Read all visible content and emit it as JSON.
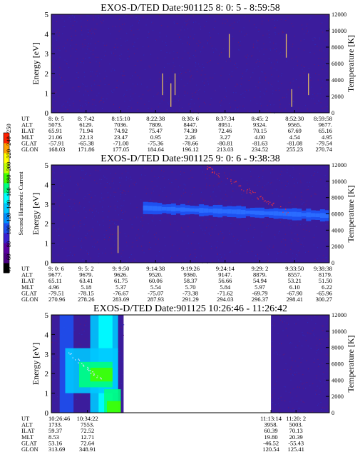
{
  "chart_data": [
    {
      "type": "heatmap",
      "title": "EXOS-D/TED   Date:901125   8: 0: 5 - 8:59:58",
      "ylabel": "Energy [eV]",
      "y2label": "Temperature [K]",
      "ylim": [
        0,
        5
      ],
      "y2lim": [
        0,
        12000
      ],
      "yticks": [
        "0",
        "1",
        "2",
        "3",
        "4",
        "5"
      ],
      "y2ticks": [
        "0",
        "2000",
        "4000",
        "6000",
        "8000",
        "10000",
        "12000"
      ],
      "xcols": [
        {
          "UT": "8: 0: 5",
          "ALT": "5073.",
          "ILAT": "65.91",
          "MLT": "21.06",
          "GLAT": "-57.91",
          "GLON": "168.03"
        },
        {
          "UT": "8: 7:42",
          "ALT": "6129.",
          "ILAT": "71.94",
          "MLT": "22.13",
          "GLAT": "-65.38",
          "GLON": "171.86"
        },
        {
          "UT": "8:15:10",
          "ALT": "7036.",
          "ILAT": "74.92",
          "MLT": "23.47",
          "GLAT": "-71.00",
          "GLON": "177.05"
        },
        {
          "UT": "8:22:38",
          "ALT": "7809.",
          "ILAT": "75.47",
          "MLT": "0.95",
          "GLAT": "-75.36",
          "GLON": "184.64"
        },
        {
          "UT": "8:30: 6",
          "ALT": "8447.",
          "ILAT": "74.39",
          "MLT": "2.26",
          "GLAT": "-78.66",
          "GLON": "196.12"
        },
        {
          "UT": "8:37:34",
          "ALT": "8951.",
          "ILAT": "72.46",
          "MLT": "3.27",
          "GLAT": "-80.81",
          "GLON": "213.03"
        },
        {
          "UT": "8:45: 2",
          "ALT": "9324.",
          "ILAT": "70.15",
          "MLT": "4.00",
          "GLAT": "-81.63",
          "GLON": "234.52"
        },
        {
          "UT": "8:52:30",
          "ALT": "9565.",
          "ILAT": "67.69",
          "MLT": "4.54",
          "GLAT": "-81.08",
          "GLON": "255.23"
        },
        {
          "UT": "8:59:58",
          "ALT": "9677.",
          "ILAT": "65.16",
          "MLT": "4.95",
          "GLAT": "-79.54",
          "GLON": "270.74"
        }
      ],
      "data_span": [
        0,
        1
      ],
      "spikes": [
        {
          "t": 0.4,
          "e0": 0.9,
          "e1": 2.0
        },
        {
          "t": 0.43,
          "e0": 0.3,
          "e1": 1.5
        },
        {
          "t": 0.445,
          "e0": 0.9,
          "e1": 2.0
        },
        {
          "t": 0.64,
          "e0": 2.8,
          "e1": 4.0
        },
        {
          "t": 0.845,
          "e0": 2.8,
          "e1": 4.0
        },
        {
          "t": 0.865,
          "e0": 0.3,
          "e1": 1.2
        },
        {
          "t": 0.925,
          "e0": 0.9,
          "e1": 2.0
        }
      ]
    },
    {
      "type": "heatmap",
      "title": "EXOS-D/TED   Date:901125   9: 0: 6 - 9:38:38",
      "ylabel": "Energy [eV]",
      "y2label": "Temperature [K]",
      "ylim": [
        0,
        5
      ],
      "y2lim": [
        0,
        12000
      ],
      "yticks": [
        "0",
        "1",
        "2",
        "3",
        "4",
        "5"
      ],
      "y2ticks": [
        "0",
        "2000",
        "4000",
        "6000",
        "8000",
        "10000",
        "12000"
      ],
      "xcols": [
        {
          "UT": "9: 0: 6",
          "ALT": "9677.",
          "ILAT": "65.11",
          "MLT": "4.96",
          "GLAT": "-79.51",
          "GLON": "270.96"
        },
        {
          "UT": "9: 5: 2",
          "ALT": "9679.",
          "ILAT": "63.41",
          "MLT": "5.18",
          "GLAT": "-78.15",
          "GLON": "278.26"
        },
        {
          "UT": "9: 9:50",
          "ALT": "9626.",
          "ILAT": "61.75",
          "MLT": "5.37",
          "GLAT": "-76.67",
          "GLON": "283.69"
        },
        {
          "UT": "9:14:38",
          "ALT": "9520.",
          "ILAT": "60.06",
          "MLT": "5.54",
          "GLAT": "-75.07",
          "GLON": "287.93"
        },
        {
          "UT": "9:19:26",
          "ALT": "9360.",
          "ILAT": "58.37",
          "MLT": "5.70",
          "GLAT": "-73.38",
          "GLON": "291.29"
        },
        {
          "UT": "9:24:14",
          "ALT": "9147.",
          "ILAT": "56.66",
          "MLT": "5.84",
          "GLAT": "-71.62",
          "GLON": "294.03"
        },
        {
          "UT": "9:29: 2",
          "ALT": "8879.",
          "ILAT": "54.94",
          "MLT": "5.97",
          "GLAT": "-69.79",
          "GLON": "296.37"
        },
        {
          "UT": "9:33:50",
          "ALT": "8557.",
          "ILAT": "53.21",
          "MLT": "6.10",
          "GLAT": "-67.90",
          "GLON": "298.41"
        },
        {
          "UT": "9:38:38",
          "ALT": "8179.",
          "ILAT": "51.50",
          "MLT": "6.22",
          "GLAT": "-65.96",
          "GLON": "300.27"
        }
      ],
      "data_span": [
        0,
        1
      ],
      "band": {
        "t_start": 0.33,
        "e_center_start": 2.8,
        "e_center_end": 2.4,
        "halfwidth": 0.25
      },
      "spikes": [
        {
          "t": 0.24,
          "e0": 0.5,
          "e1": 1.9
        }
      ]
    },
    {
      "type": "heatmap",
      "title": "EXOS-D/TED   Date:901125   10:26:46 - 11:26:42",
      "ylabel": "Energy [eV]",
      "y2label": "Temperature [K]",
      "ylim": [
        0,
        5
      ],
      "y2lim": [
        0,
        12000
      ],
      "yticks": [
        "0",
        "1",
        "2",
        "3",
        "4",
        "5"
      ],
      "y2ticks": [
        "0",
        "2000",
        "4000",
        "6000",
        "8000",
        "10000",
        "12000"
      ],
      "xcols": [
        {
          "UT": "10:26:46",
          "ALT": "1733.",
          "ILAT": "59.37",
          "MLT": "8.53",
          "GLAT": "53.16",
          "GLON": "313.69"
        },
        {
          "UT": "10:34:22",
          "ALT": "7553.",
          "ILAT": "72.52",
          "MLT": "12.71",
          "GLAT": "72.64",
          "GLON": "348.91"
        },
        {
          "UT": "11:13:14",
          "ALT": "3958.",
          "ILAT": "60.39",
          "MLT": "19.80",
          "GLAT": "-46.52",
          "GLON": "120.54"
        },
        {
          "UT": "11:20: 2",
          "ALT": "5003.",
          "ILAT": "70.13",
          "MLT": "20.39",
          "GLAT": "-55.43",
          "GLON": "125.41"
        }
      ],
      "data_span": [
        [
          0,
          0.26
        ],
        [
          0.79,
          1
        ]
      ]
    }
  ],
  "colorbar": {
    "label": "Second Harmonic Current",
    "ticks": [
      "40",
      "60",
      "80",
      "100",
      "120",
      "140",
      "160",
      "180",
      "200",
      "220",
      "240",
      "250"
    ],
    "colors": [
      "#000000",
      "#4b0082",
      "#5a00a0",
      "#3a20d0",
      "#1e50f0",
      "#0090ff",
      "#00c8ff",
      "#00ffff",
      "#00ff80",
      "#40ff00",
      "#c0ff00",
      "#ffff00",
      "#ffa000",
      "#ff2000"
    ]
  },
  "row_labels": [
    "UT",
    "ALT",
    "ILAT",
    "MLT",
    "GLAT",
    "GLON"
  ]
}
